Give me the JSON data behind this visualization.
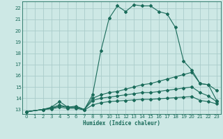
{
  "xlabel": "Humidex (Indice chaleur)",
  "bg_color": "#cde8e5",
  "grid_color": "#aaccca",
  "line_color": "#1a6b5a",
  "xlim": [
    -0.5,
    23.5
  ],
  "ylim": [
    12.6,
    22.6
  ],
  "xticks": [
    0,
    1,
    2,
    3,
    4,
    5,
    6,
    7,
    8,
    9,
    10,
    11,
    12,
    13,
    14,
    15,
    16,
    17,
    18,
    19,
    20,
    21,
    22,
    23
  ],
  "yticks": [
    13,
    14,
    15,
    16,
    17,
    18,
    19,
    20,
    21,
    22
  ],
  "series": [
    {
      "x": [
        0,
        2,
        3,
        4,
        5,
        6,
        7,
        8,
        9,
        10,
        11,
        12,
        13,
        14,
        15,
        16,
        17,
        18,
        19,
        20,
        21,
        22,
        23
      ],
      "y": [
        12.8,
        13.0,
        13.2,
        13.7,
        13.2,
        13.3,
        13.0,
        14.3,
        18.2,
        21.1,
        22.2,
        21.7,
        22.3,
        22.2,
        22.2,
        21.7,
        21.5,
        20.3,
        17.3,
        16.5,
        15.3,
        15.2,
        14.7
      ]
    },
    {
      "x": [
        0,
        2,
        3,
        4,
        5,
        6,
        7,
        8,
        9,
        10,
        11,
        12,
        13,
        14,
        15,
        16,
        17,
        18,
        19,
        20,
        21,
        22,
        23
      ],
      "y": [
        12.8,
        13.0,
        13.15,
        13.4,
        13.2,
        13.2,
        13.0,
        14.0,
        14.3,
        14.5,
        14.6,
        14.8,
        15.0,
        15.2,
        15.3,
        15.5,
        15.7,
        15.9,
        16.1,
        16.3,
        15.3,
        15.2,
        13.8
      ]
    },
    {
      "x": [
        0,
        2,
        3,
        4,
        5,
        6,
        7,
        8,
        9,
        10,
        11,
        12,
        13,
        14,
        15,
        16,
        17,
        18,
        19,
        20,
        21,
        22,
        23
      ],
      "y": [
        12.8,
        13.0,
        13.1,
        13.3,
        13.2,
        13.2,
        13.0,
        13.8,
        14.0,
        14.1,
        14.2,
        14.3,
        14.4,
        14.5,
        14.5,
        14.6,
        14.7,
        14.8,
        14.9,
        15.0,
        14.5,
        14.2,
        13.7
      ]
    },
    {
      "x": [
        0,
        2,
        3,
        4,
        5,
        6,
        7,
        8,
        9,
        10,
        11,
        12,
        13,
        14,
        15,
        16,
        17,
        18,
        19,
        20,
        21,
        22,
        23
      ],
      "y": [
        12.8,
        13.0,
        13.05,
        13.2,
        13.1,
        13.1,
        12.95,
        13.4,
        13.6,
        13.7,
        13.75,
        13.8,
        13.85,
        13.9,
        13.9,
        13.95,
        14.0,
        14.05,
        14.1,
        14.15,
        13.8,
        13.7,
        13.5
      ]
    }
  ]
}
